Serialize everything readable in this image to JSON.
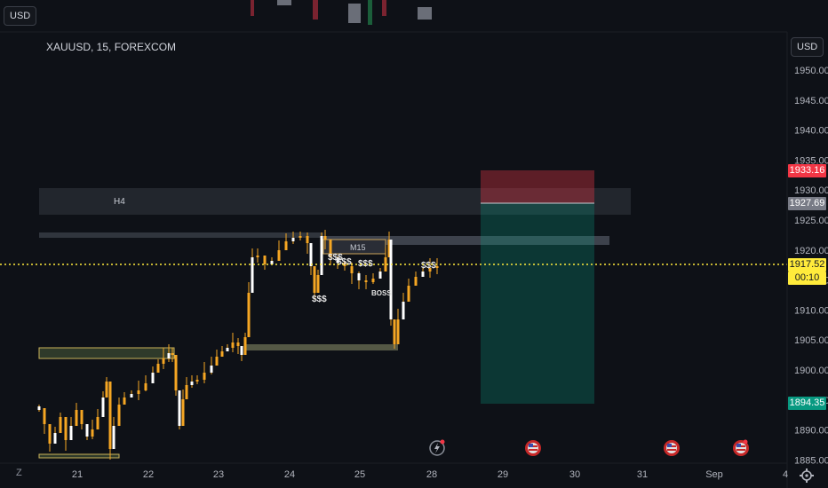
{
  "header": {
    "currency_top_left": "USD",
    "currency_axis": "USD",
    "symbol": "XAUUSD, 15, FOREXCOM"
  },
  "price_axis": {
    "ticks": [
      "1950.00",
      "1945.00",
      "1940.00",
      "1935.00",
      "1930.00",
      "1925.00",
      "1920.00",
      "1915.00",
      "1910.00",
      "1905.00",
      "1900.00",
      "1895.00",
      "1890.00",
      "1885.00"
    ],
    "tags": {
      "stop": "1933.16",
      "entry": "1927.69",
      "current": "1917.52",
      "countdown": "00:10",
      "target": "1894.35"
    }
  },
  "time_axis": {
    "ticks": [
      "21",
      "22",
      "23",
      "24",
      "25",
      "28",
      "29",
      "30",
      "31",
      "Sep",
      "4"
    ]
  },
  "annotations": {
    "h4": "H4",
    "m15": "M15",
    "liq1": "$$$",
    "liq2": "$$$",
    "liq3": "$$$",
    "liq4": "$$$",
    "liq5": "$$$",
    "boss": "BOSS"
  },
  "corner": {
    "left_icon": "Z",
    "right_icon": "gear-icon"
  },
  "colors": {
    "background": "#0e1117",
    "candle": "#f5a623",
    "stop_zone": "#f23645",
    "target_zone": "#089981",
    "current_price": "#ffeb3b"
  }
}
